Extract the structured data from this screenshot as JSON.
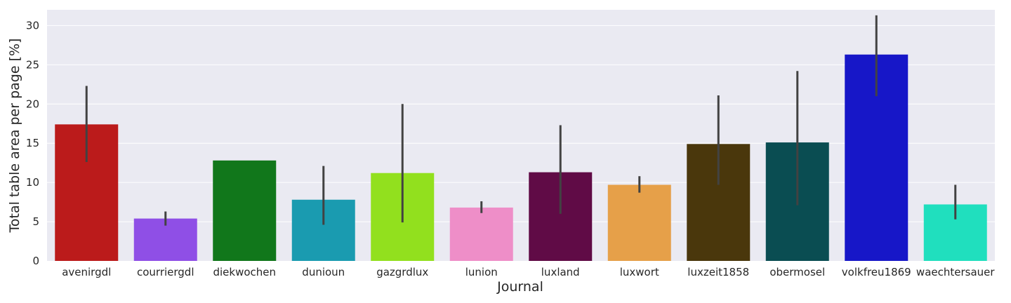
{
  "chart_data": {
    "type": "bar",
    "title": "",
    "xlabel": "Journal",
    "ylabel": "Total table area per page [%]",
    "ylim": [
      0,
      32
    ],
    "yticks": [
      0,
      5,
      10,
      15,
      20,
      25,
      30
    ],
    "grid": true,
    "legend": "none",
    "categories": [
      "avenirgdl",
      "courriergdl",
      "diekwochen",
      "dunioun",
      "gazgrdlux",
      "lunion",
      "luxland",
      "luxwort",
      "luxzeit1858",
      "obermosel",
      "volkfreu1869",
      "waechtersauer"
    ],
    "values": [
      17.4,
      5.4,
      12.8,
      7.8,
      11.2,
      6.8,
      11.3,
      9.7,
      14.9,
      15.1,
      26.3,
      7.2
    ],
    "error_low": [
      12.6,
      4.5,
      null,
      4.6,
      4.9,
      6.1,
      6.0,
      8.7,
      9.7,
      7.1,
      21.0,
      5.3
    ],
    "error_high": [
      22.3,
      6.3,
      null,
      12.1,
      20.0,
      7.6,
      17.3,
      10.8,
      21.1,
      24.2,
      31.3,
      9.7
    ],
    "colors": [
      "#bb1b1b",
      "#8f4fe6",
      "#11771b",
      "#1a9bb0",
      "#92e01e",
      "#ee8ec8",
      "#600b46",
      "#e6a049",
      "#4a370c",
      "#0a4d52",
      "#1717c8",
      "#20dfbe"
    ],
    "error_color": "#424242",
    "background_color": "#eaeaf2"
  }
}
